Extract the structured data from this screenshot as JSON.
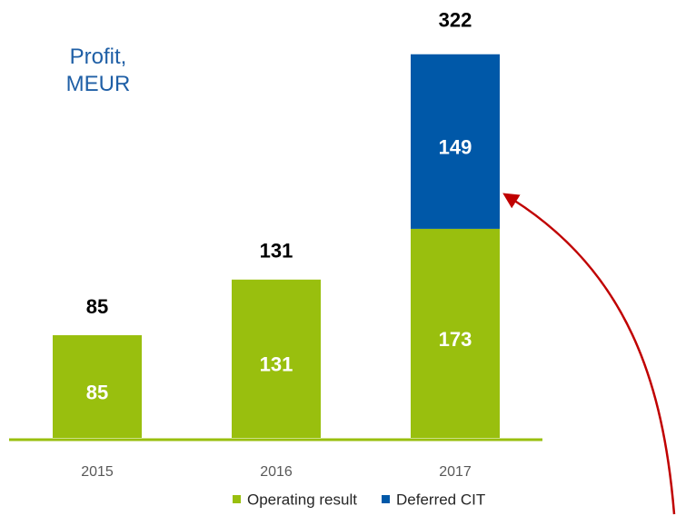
{
  "chart_data": {
    "type": "stacked-bar",
    "title": "Profit,\nMEUR",
    "categories": [
      "2015",
      "2016",
      "2017"
    ],
    "series": [
      {
        "name": "Operating result",
        "color": "#99bf0e",
        "values": [
          85,
          131,
          173
        ]
      },
      {
        "name": "Deferred CIT",
        "color": "#0058a8",
        "values": [
          null,
          null,
          149
        ]
      }
    ],
    "totals": [
      85,
      131,
      322
    ],
    "legend": "bottom"
  }
}
